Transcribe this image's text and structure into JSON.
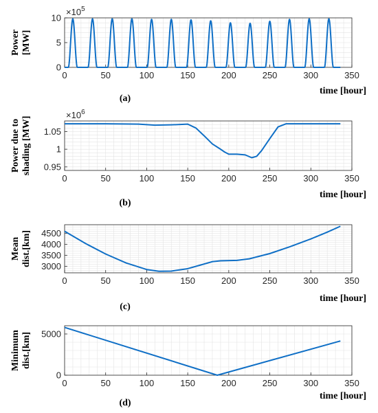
{
  "chart_data": [
    {
      "type": "line",
      "panel_label": "(a)",
      "ylabel": [
        "Power",
        "[MW]"
      ],
      "xlabel": "time [hour]",
      "exponent": {
        "base": "×10",
        "power": "5"
      },
      "xlim": [
        0,
        350
      ],
      "ylim": [
        0,
        10
      ],
      "xticks": [
        "0",
        "50",
        "100",
        "150",
        "200",
        "250",
        "300",
        "350"
      ],
      "yticks": [
        "0",
        "5",
        "10"
      ],
      "ytick_values": [
        0,
        5,
        10
      ],
      "grid": true,
      "pattern": {
        "kind": "daily_pulses",
        "period_hours": 24,
        "first_peak_hour": 10,
        "peak_width_hours": 11,
        "x_end": 336,
        "peaks": [
          9.8,
          9.8,
          9.8,
          9.8,
          9.7,
          9.7,
          9.6,
          9.4,
          9.0,
          8.9,
          9.3,
          9.7,
          9.8,
          9.8
        ]
      }
    },
    {
      "type": "line",
      "panel_label": "(b)",
      "ylabel": [
        "Power due to",
        "shading [MW]"
      ],
      "xlabel": "time [hour]",
      "exponent": {
        "base": "×10",
        "power": "6"
      },
      "xlim": [
        0,
        350
      ],
      "ylim": [
        0.94,
        1.08
      ],
      "xticks": [
        "0",
        "50",
        "100",
        "150",
        "200",
        "250",
        "300",
        "350"
      ],
      "yticks": [
        "0.95",
        "1",
        "1.05"
      ],
      "ytick_values": [
        0.95,
        1.0,
        1.05
      ],
      "grid": true,
      "x": [
        0,
        50,
        90,
        110,
        130,
        150,
        160,
        170,
        180,
        190,
        195,
        200,
        210,
        215,
        220,
        228,
        234,
        240,
        250,
        260,
        270,
        280,
        300,
        336
      ],
      "y": [
        1.072,
        1.072,
        1.071,
        1.068,
        1.069,
        1.071,
        1.06,
        1.038,
        1.015,
        1.0,
        0.992,
        0.986,
        0.986,
        0.985,
        0.984,
        0.976,
        0.98,
        0.996,
        1.03,
        1.063,
        1.072,
        1.072,
        1.072,
        1.072
      ]
    },
    {
      "type": "line",
      "panel_label": "(c)",
      "ylabel": [
        "Mean",
        "dist.[km]"
      ],
      "xlabel": "time [hour]",
      "xlim": [
        0,
        350
      ],
      "ylim": [
        2700,
        4900
      ],
      "xticks": [
        "0",
        "50",
        "100",
        "150",
        "200",
        "250",
        "300",
        "350"
      ],
      "yticks": [
        "3000",
        "3500",
        "4000",
        "4500"
      ],
      "ytick_values": [
        3000,
        3500,
        4000,
        4500
      ],
      "grid": true,
      "x": [
        0,
        25,
        50,
        75,
        100,
        115,
        130,
        150,
        165,
        180,
        190,
        210,
        225,
        250,
        275,
        300,
        320,
        336
      ],
      "y": [
        4600,
        4050,
        3560,
        3150,
        2850,
        2770,
        2780,
        2890,
        3050,
        3210,
        3250,
        3270,
        3340,
        3580,
        3900,
        4250,
        4560,
        4830
      ]
    },
    {
      "type": "line",
      "panel_label": "(d)",
      "ylabel": [
        "Minimum",
        "dist.[km]"
      ],
      "xlabel": "time [hour]",
      "xlim": [
        0,
        350
      ],
      "ylim": [
        0,
        6000
      ],
      "xticks": [
        "0",
        "50",
        "100",
        "150",
        "200",
        "250",
        "300",
        "350"
      ],
      "yticks": [
        "0",
        "5000"
      ],
      "ytick_values": [
        0,
        5000
      ],
      "grid": true,
      "x": [
        0,
        186,
        336
      ],
      "y": [
        5800,
        0,
        4150
      ]
    }
  ]
}
